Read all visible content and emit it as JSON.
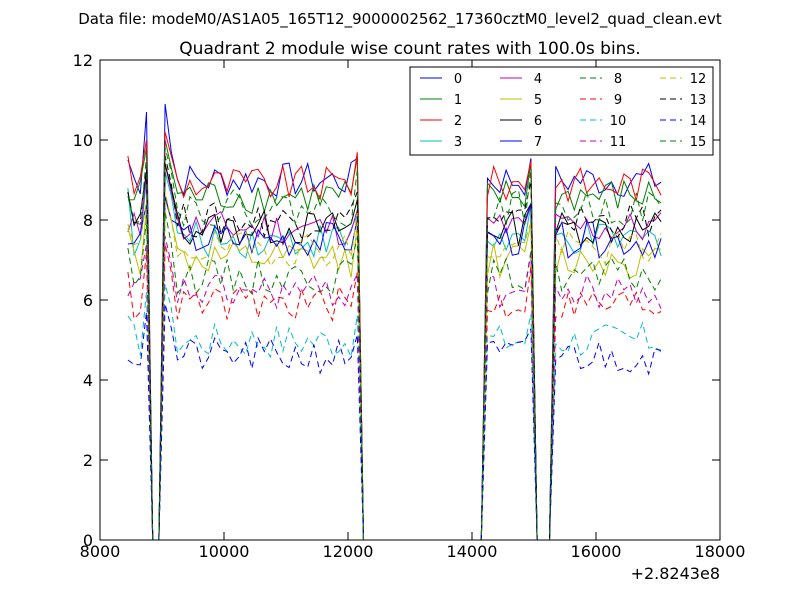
{
  "header": {
    "data_file": "Data file: modeM0/AS1A05_165T12_9000002562_17360cztM0_level2_quad_clean.evt"
  },
  "chart_data": {
    "type": "line",
    "title": "Quadrant 2 module wise count rates with 100.0s bins.",
    "xlabel": "",
    "ylabel": "",
    "xlim": [
      8000,
      18000
    ],
    "ylim": [
      0,
      12
    ],
    "x_offset_label": "+2.8243e8",
    "xticks": [
      8000,
      10000,
      12000,
      14000,
      16000,
      18000
    ],
    "xtick_labels": [
      "8000",
      "10000",
      "12000",
      "14000",
      "16000",
      "18000"
    ],
    "yticks": [
      0,
      2,
      4,
      6,
      8,
      10,
      12
    ],
    "ytick_labels": [
      "0",
      "2",
      "4",
      "6",
      "8",
      "10",
      "12"
    ],
    "grid": false,
    "legend_position": "top-right",
    "x": [
      8450,
      8550,
      8650,
      8750,
      8850,
      8950,
      9050,
      9150,
      9250,
      9350,
      9450,
      9550,
      9650,
      9750,
      9850,
      9950,
      10050,
      10150,
      10250,
      10350,
      10450,
      10550,
      10650,
      10750,
      10850,
      10950,
      11050,
      11150,
      11250,
      11350,
      11450,
      11550,
      11650,
      11750,
      11850,
      11950,
      12050,
      12150,
      12250,
      12350,
      12450,
      12550,
      12650,
      12750,
      12850,
      12950,
      13050,
      13150,
      13250,
      13350,
      13450,
      13550,
      13650,
      13750,
      13850,
      13950,
      14050,
      14150,
      14250,
      14350,
      14450,
      14550,
      14650,
      14750,
      14850,
      14950,
      15050,
      15150,
      15250,
      15350,
      15450,
      15550,
      15650,
      15750,
      15850,
      15950,
      16050,
      16150,
      16250,
      16350,
      16450,
      16550,
      16650,
      16750,
      16850,
      16950,
      17050
    ],
    "active_segments": [
      {
        "from_x": 8450,
        "to_x": 8750,
        "edge_x": 8850
      },
      {
        "from_x": 9050,
        "to_x": 12150,
        "edge_x": 12250
      },
      {
        "from_x": 14250,
        "to_x": 14950,
        "edge_x": 15050
      },
      {
        "from_x": 15350,
        "to_x": 17050,
        "edge_x": 15250
      }
    ],
    "series": [
      {
        "name": "0",
        "color": "#0000ff",
        "dash": "solid",
        "base": 9.0,
        "first": 9.5,
        "spike": 10.9,
        "post": 9.7
      },
      {
        "name": "1",
        "color": "#008000",
        "dash": "solid",
        "base": 8.6,
        "first": 8.5,
        "spike": 10.0,
        "post": 9.3
      },
      {
        "name": "2",
        "color": "#ff0000",
        "dash": "solid",
        "base": 8.9,
        "first": 9.6,
        "spike": 10.2,
        "post": 9.6
      },
      {
        "name": "3",
        "color": "#00bfbf",
        "dash": "solid",
        "base": 7.5,
        "first": 8.8,
        "spike": 9.2,
        "post": 8.6
      },
      {
        "name": "4",
        "color": "#bf00bf",
        "dash": "solid",
        "base": 7.8,
        "first": 7.7,
        "spike": 9.4,
        "post": 8.7
      },
      {
        "name": "5",
        "color": "#bfbf00",
        "dash": "solid",
        "base": 7.0,
        "first": 7.8,
        "spike": 8.5,
        "post": 8.0
      },
      {
        "name": "6",
        "color": "#000000",
        "dash": "solid",
        "base": 7.8,
        "first": 8.7,
        "spike": 9.4,
        "post": 8.8
      },
      {
        "name": "7",
        "color": "#0000ff",
        "dash": "solid",
        "base": 7.5,
        "first": 7.4,
        "spike": 8.6,
        "post": 8.0
      },
      {
        "name": "8",
        "color": "#008000",
        "dash": "dashed",
        "base": 6.6,
        "first": 7.3,
        "spike": 8.2,
        "post": 7.4
      },
      {
        "name": "9",
        "color": "#ff0000",
        "dash": "dashed",
        "base": 5.9,
        "first": 6.7,
        "spike": 7.4,
        "post": 6.7
      },
      {
        "name": "10",
        "color": "#00bfbf",
        "dash": "dashed",
        "base": 5.0,
        "first": 5.6,
        "spike": 6.4,
        "post": 5.8
      },
      {
        "name": "11",
        "color": "#bf00bf",
        "dash": "dashed",
        "base": 6.2,
        "first": 6.1,
        "spike": 7.6,
        "post": 6.9
      },
      {
        "name": "12",
        "color": "#bfbf00",
        "dash": "dashed",
        "base": 7.3,
        "first": 7.9,
        "spike": 8.7,
        "post": 8.0
      },
      {
        "name": "13",
        "color": "#000000",
        "dash": "dashed",
        "base": 8.0,
        "first": 8.7,
        "spike": 9.6,
        "post": 8.9
      },
      {
        "name": "14",
        "color": "#0000ff",
        "dash": "dashed",
        "base": 4.6,
        "first": 4.5,
        "spike": 5.9,
        "post": 5.3
      },
      {
        "name": "15",
        "color": "#008000",
        "dash": "dashed",
        "base": 8.3,
        "first": 8.6,
        "spike": 9.8,
        "post": 9.2
      }
    ]
  }
}
